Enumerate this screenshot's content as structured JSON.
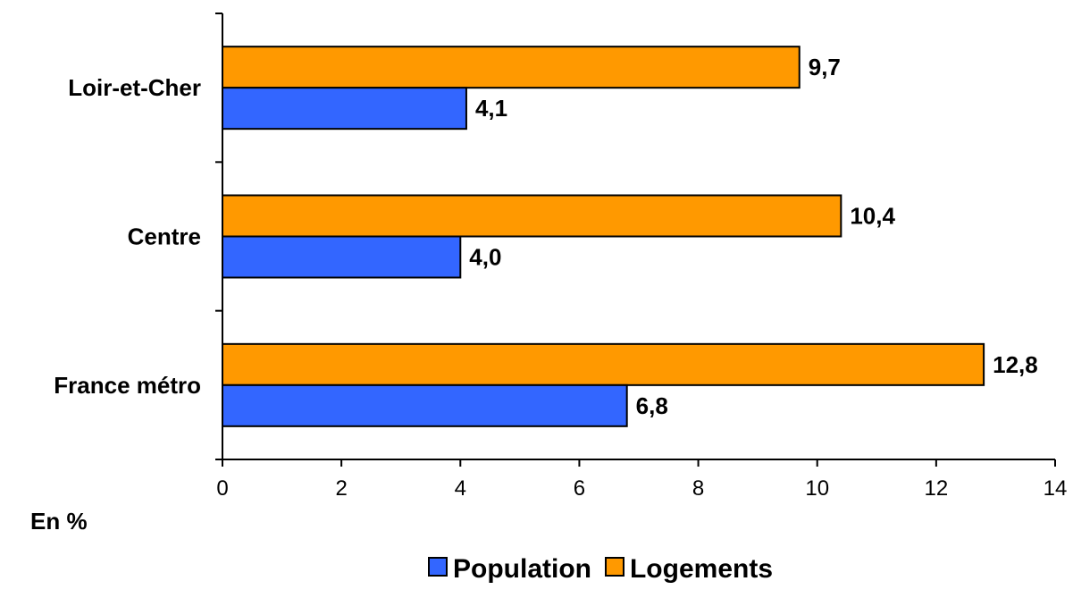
{
  "chart_data": {
    "type": "bar",
    "orientation": "horizontal",
    "categories": [
      "Loir-et-Cher",
      "Centre",
      "France métro"
    ],
    "series": [
      {
        "name": "Population",
        "values": [
          4.1,
          4.0,
          6.8
        ],
        "labels": [
          "4,1",
          "4,0",
          "6,8"
        ],
        "color": "#3366FF"
      },
      {
        "name": "Logements",
        "values": [
          9.7,
          10.4,
          12.8
        ],
        "labels": [
          "9,7",
          "10,4",
          "12,8"
        ],
        "color": "#FF9900"
      }
    ],
    "xlim": [
      0,
      14
    ],
    "xticks": [
      0,
      2,
      4,
      6,
      8,
      10,
      12,
      14
    ],
    "unit_label": "En %",
    "legend_position": "bottom",
    "grid": false
  }
}
